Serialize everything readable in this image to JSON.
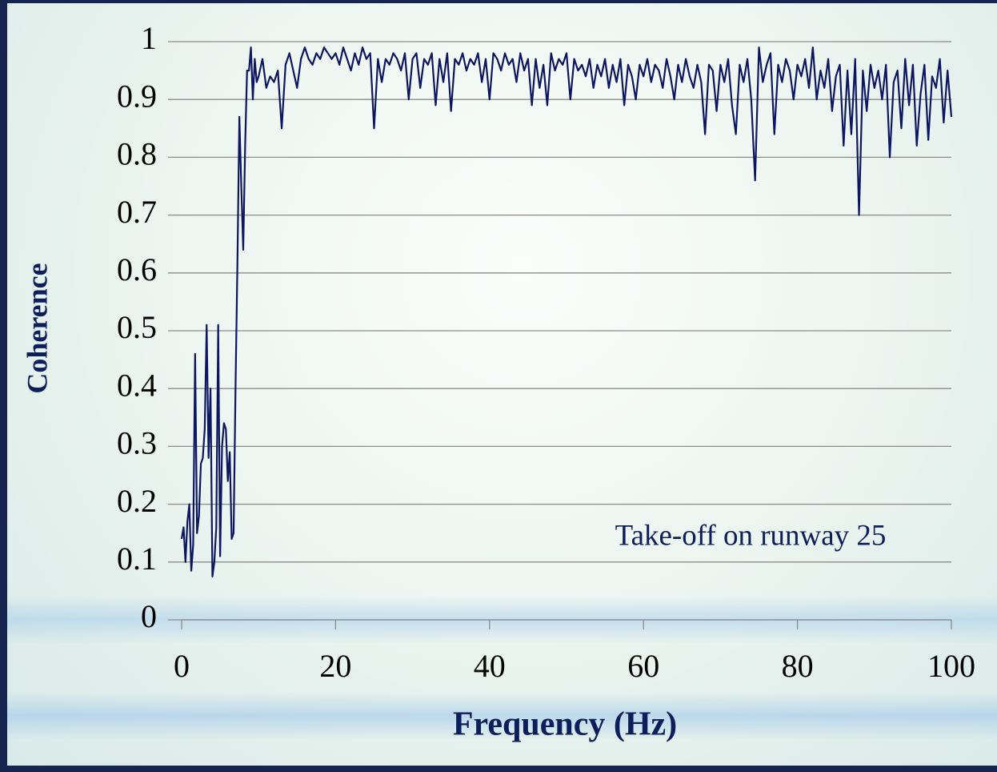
{
  "chart_data": {
    "type": "line",
    "x_label": "Frequency (Hz)",
    "y_label": "Coherence",
    "annotation": "Take-off on runway 25",
    "color": "#0d1660",
    "grid": true,
    "xlim": [
      0,
      100
    ],
    "xticks": [
      0,
      20,
      40,
      60,
      80,
      100
    ],
    "ylim": [
      0,
      1
    ],
    "yticks": [
      0,
      0.1,
      0.2,
      0.3,
      0.4,
      0.5,
      0.6,
      0.7,
      0.8,
      0.9,
      1
    ],
    "x": [
      0,
      0.25,
      0.5,
      0.75,
      1,
      1.25,
      1.5,
      1.75,
      2,
      2.25,
      2.5,
      2.75,
      3,
      3.25,
      3.5,
      3.75,
      4,
      4.25,
      4.5,
      4.75,
      5,
      5.25,
      5.5,
      5.75,
      6,
      6.25,
      6.5,
      6.75,
      7,
      7.25,
      7.5,
      7.75,
      8,
      8.25,
      8.5,
      8.75,
      9,
      9.25,
      9.5,
      9.75,
      10,
      10.5,
      11,
      11.5,
      12,
      12.5,
      13,
      13.5,
      14,
      14.5,
      15,
      15.5,
      16,
      16.5,
      17,
      17.5,
      18,
      18.5,
      19,
      19.5,
      20,
      20.5,
      21,
      21.5,
      22,
      22.5,
      23,
      23.5,
      24,
      24.5,
      25,
      25.5,
      26,
      26.5,
      27,
      27.5,
      28,
      28.5,
      29,
      29.5,
      30,
      30.5,
      31,
      31.5,
      32,
      32.5,
      33,
      33.5,
      34,
      34.5,
      35,
      35.5,
      36,
      36.5,
      37,
      37.5,
      38,
      38.5,
      39,
      39.5,
      40,
      40.5,
      41,
      41.5,
      42,
      42.5,
      43,
      43.5,
      44,
      44.5,
      45,
      45.5,
      46,
      46.5,
      47,
      47.5,
      48,
      48.5,
      49,
      49.5,
      50,
      50.5,
      51,
      51.5,
      52,
      52.5,
      53,
      53.5,
      54,
      54.5,
      55,
      55.5,
      56,
      56.5,
      57,
      57.5,
      58,
      58.5,
      59,
      59.5,
      60,
      60.5,
      61,
      61.5,
      62,
      62.5,
      63,
      63.5,
      64,
      64.5,
      65,
      65.5,
      66,
      66.5,
      67,
      67.5,
      68,
      68.5,
      69,
      69.5,
      70,
      70.5,
      71,
      71.5,
      72,
      72.5,
      73,
      73.5,
      74,
      74.5,
      75,
      75.5,
      76,
      76.5,
      77,
      77.5,
      78,
      78.5,
      79,
      79.5,
      80,
      80.5,
      81,
      81.5,
      82,
      82.5,
      83,
      83.5,
      84,
      84.5,
      85,
      85.5,
      86,
      86.5,
      87,
      87.5,
      88,
      88.5,
      89,
      89.5,
      90,
      90.5,
      91,
      91.5,
      92,
      92.5,
      93,
      93.5,
      94,
      94.5,
      95,
      95.5,
      96,
      96.5,
      97,
      97.5,
      98,
      98.5,
      99,
      99.5,
      100
    ],
    "values": [
      0.14,
      0.16,
      0.1,
      0.17,
      0.2,
      0.085,
      0.13,
      0.46,
      0.15,
      0.18,
      0.27,
      0.28,
      0.33,
      0.51,
      0.28,
      0.4,
      0.075,
      0.1,
      0.16,
      0.51,
      0.11,
      0.3,
      0.34,
      0.33,
      0.24,
      0.29,
      0.14,
      0.15,
      0.4,
      0.62,
      0.87,
      0.75,
      0.64,
      0.82,
      0.95,
      0.95,
      0.99,
      0.9,
      0.97,
      0.93,
      0.94,
      0.97,
      0.92,
      0.94,
      0.93,
      0.95,
      0.85,
      0.96,
      0.98,
      0.95,
      0.92,
      0.97,
      0.99,
      0.97,
      0.96,
      0.98,
      0.97,
      0.99,
      0.98,
      0.97,
      0.98,
      0.96,
      0.99,
      0.97,
      0.95,
      0.98,
      0.96,
      0.99,
      0.97,
      0.98,
      0.85,
      0.97,
      0.93,
      0.97,
      0.96,
      0.98,
      0.97,
      0.95,
      0.98,
      0.9,
      0.97,
      0.98,
      0.92,
      0.97,
      0.96,
      0.98,
      0.89,
      0.97,
      0.93,
      0.98,
      0.88,
      0.97,
      0.96,
      0.98,
      0.95,
      0.97,
      0.96,
      0.98,
      0.93,
      0.97,
      0.9,
      0.98,
      0.97,
      0.95,
      0.98,
      0.96,
      0.97,
      0.93,
      0.98,
      0.95,
      0.97,
      0.89,
      0.97,
      0.92,
      0.96,
      0.89,
      0.98,
      0.95,
      0.97,
      0.96,
      0.98,
      0.9,
      0.97,
      0.95,
      0.96,
      0.94,
      0.97,
      0.92,
      0.96,
      0.94,
      0.97,
      0.92,
      0.96,
      0.93,
      0.97,
      0.89,
      0.96,
      0.94,
      0.9,
      0.96,
      0.94,
      0.97,
      0.93,
      0.96,
      0.95,
      0.92,
      0.97,
      0.94,
      0.9,
      0.96,
      0.93,
      0.97,
      0.94,
      0.92,
      0.96,
      0.93,
      0.84,
      0.96,
      0.95,
      0.88,
      0.96,
      0.93,
      0.97,
      0.89,
      0.84,
      0.96,
      0.93,
      0.97,
      0.9,
      0.76,
      0.99,
      0.93,
      0.96,
      0.98,
      0.84,
      0.96,
      0.93,
      0.97,
      0.95,
      0.9,
      0.96,
      0.94,
      0.97,
      0.92,
      0.99,
      0.9,
      0.95,
      0.92,
      0.97,
      0.88,
      0.94,
      0.96,
      0.82,
      0.95,
      0.84,
      0.97,
      0.7,
      0.95,
      0.88,
      0.96,
      0.92,
      0.95,
      0.9,
      0.96,
      0.8,
      0.93,
      0.95,
      0.85,
      0.97,
      0.89,
      0.96,
      0.82,
      0.91,
      0.96,
      0.83,
      0.94,
      0.92,
      0.97,
      0.86,
      0.95,
      0.87
    ]
  }
}
